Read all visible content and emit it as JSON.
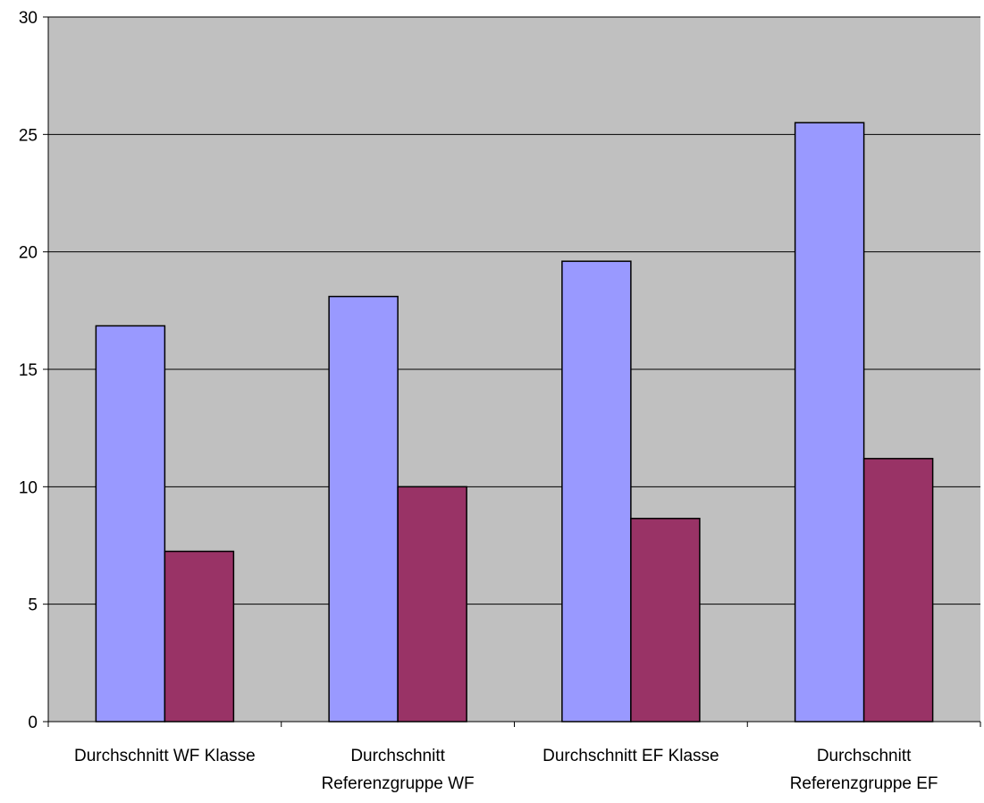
{
  "chart_data": {
    "type": "bar",
    "categories": [
      [
        "Durchschnitt WF Klasse"
      ],
      [
        "Durchschnitt",
        "Referenzgruppe WF"
      ],
      [
        "Durchschnitt EF Klasse"
      ],
      [
        "Durchschnitt",
        "Referenzgruppe EF"
      ]
    ],
    "series": [
      {
        "values": [
          16.85,
          18.1,
          19.6,
          25.5
        ],
        "color": "#9999ff"
      },
      {
        "values": [
          7.25,
          10.0,
          8.65,
          11.2
        ],
        "color": "#993366"
      }
    ],
    "ylim": [
      0,
      30
    ],
    "yticks": [
      "0",
      "5",
      "10",
      "15",
      "20",
      "25",
      "30"
    ],
    "grid": true,
    "plot_background": "#c0c0c0",
    "legend": "none"
  }
}
